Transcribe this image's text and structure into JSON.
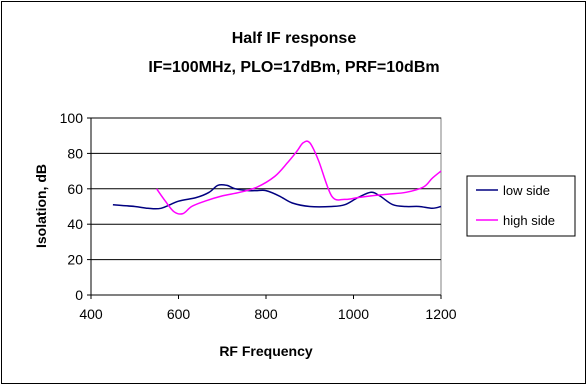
{
  "chart_data": {
    "type": "line",
    "title": "Half IF response",
    "subtitle": "IF=100MHz, PLO=17dBm, PRF=10dBm",
    "xlabel": "RF Frequency",
    "ylabel": "Isolation, dB",
    "xlim": [
      400,
      1200
    ],
    "ylim": [
      0,
      100
    ],
    "xticks": [
      400,
      600,
      800,
      1000,
      1200
    ],
    "yticks": [
      0,
      20,
      40,
      60,
      80,
      100
    ],
    "grid": "horizontal",
    "legend_position": "right",
    "series": [
      {
        "name": "low side",
        "color": "#000080",
        "x": [
          450,
          500,
          530,
          560,
          600,
          640,
          670,
          690,
          710,
          730,
          760,
          780,
          800,
          830,
          860,
          900,
          950,
          980,
          1010,
          1040,
          1060,
          1090,
          1120,
          1150,
          1180,
          1200
        ],
        "y": [
          51,
          50,
          49,
          49,
          53,
          55,
          58,
          62,
          62,
          60,
          59,
          59,
          59,
          56,
          52,
          50,
          50,
          51,
          55,
          58,
          56,
          51,
          50,
          50,
          49,
          50
        ]
      },
      {
        "name": "high side",
        "color": "#FF00FF",
        "x": [
          550,
          570,
          590,
          610,
          630,
          660,
          700,
          740,
          780,
          820,
          850,
          870,
          885,
          900,
          920,
          950,
          980,
          1010,
          1040,
          1080,
          1120,
          1160,
          1180,
          1200
        ],
        "y": [
          60,
          53,
          47,
          46,
          50,
          53,
          56,
          58,
          61,
          67,
          75,
          81,
          86,
          86,
          76,
          56,
          54,
          55,
          56,
          57,
          58,
          61,
          66,
          70
        ]
      }
    ]
  }
}
